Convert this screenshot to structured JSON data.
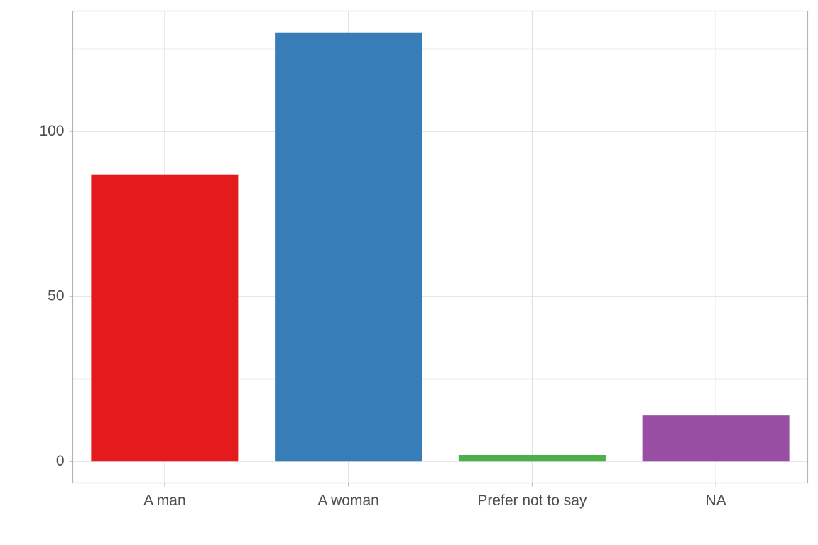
{
  "chart_data": {
    "type": "bar",
    "categories": [
      "A man",
      "A woman",
      "Prefer not to say",
      "NA"
    ],
    "values": [
      87,
      130,
      2,
      14
    ],
    "colors": [
      "#e41a1c",
      "#377eb8",
      "#4daf4a",
      "#984ea3"
    ],
    "ylim": [
      -6.5,
      136.5
    ],
    "yticks": [
      0,
      50,
      100
    ],
    "minor_yticks": [
      25,
      75,
      125
    ],
    "grid": true
  }
}
